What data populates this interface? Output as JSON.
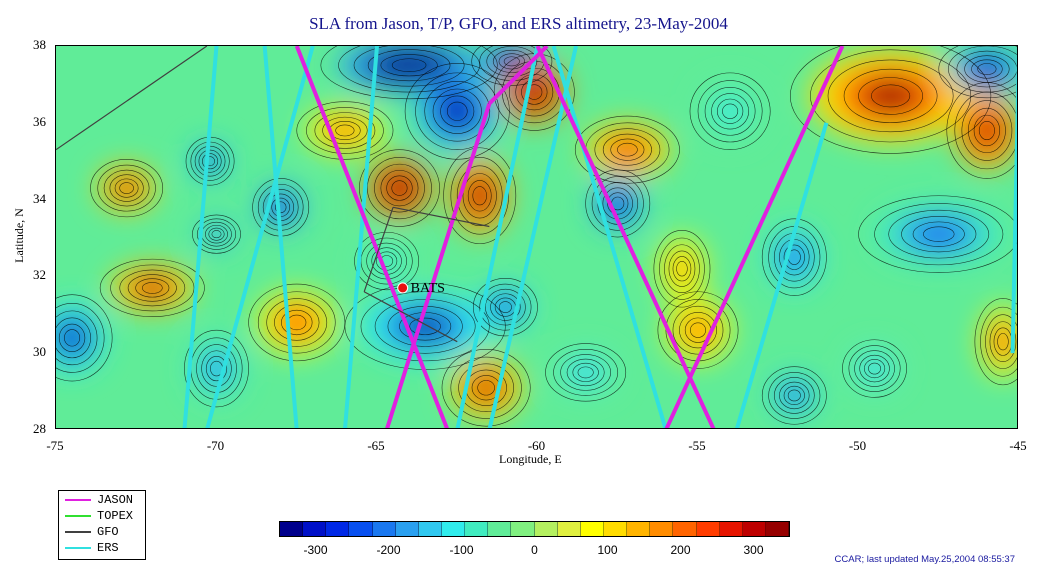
{
  "title": "SLA from Jason, T/P, GFO, and ERS altimetry, 23-May-2004",
  "axes": {
    "x_label": "Longitude, E",
    "y_label": "Latitude, N",
    "x_ticks": [
      "-75",
      "-70",
      "-65",
      "-60",
      "-55",
      "-50",
      "-45"
    ],
    "y_ticks": [
      "38",
      "36",
      "34",
      "32",
      "30",
      "28"
    ],
    "x_range": [
      -75,
      -45
    ],
    "y_range": [
      28,
      38
    ]
  },
  "map": {
    "station_label": "BATS",
    "station_lon": -64.2,
    "station_lat": 31.7
  },
  "legend": {
    "items": [
      {
        "label": "JASON",
        "color": "#e020e0"
      },
      {
        "label": "TOPEX",
        "color": "#30e030"
      },
      {
        "label": "GFO",
        "color": "#404040"
      },
      {
        "label": "ERS",
        "color": "#30e0e0"
      }
    ]
  },
  "colorbar": {
    "ticks": [
      "-300",
      "-200",
      "-100",
      "0",
      "100",
      "200",
      "300"
    ],
    "range": [
      -350,
      350
    ],
    "colors": [
      "#00008c",
      "#0010c8",
      "#0028e6",
      "#0850f0",
      "#1a78f0",
      "#2aa0f0",
      "#30c8f0",
      "#30ecec",
      "#40ecc0",
      "#60ec98",
      "#80f080",
      "#b4f060",
      "#e0f040",
      "#ffff00",
      "#ffdc00",
      "#ffb400",
      "#ff8c00",
      "#ff6400",
      "#ff3c00",
      "#e61400",
      "#be0000",
      "#960000"
    ]
  },
  "footer": "CCAR; last updated May.25,2004 08:55:37"
}
